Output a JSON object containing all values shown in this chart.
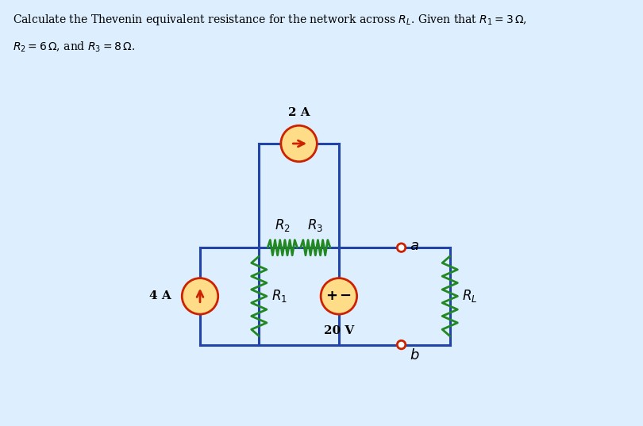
{
  "bg_color": "#ddeeff",
  "wire_color": "#2244aa",
  "resistor_color": "#228822",
  "source_fill": "#ffdd88",
  "source_border": "#cc2200",
  "label_2A": "2 A",
  "label_4A": "4 A",
  "label_20V": "20 V",
  "label_R1": "$R_1$",
  "label_R2": "$R_2$",
  "label_R3": "$R_3$",
  "label_RL": "$R_L$",
  "label_a": "$a$",
  "label_b": "$b$",
  "title_line1": "Calculate the Thevenin equivalent resistance for the network across $R_L$. Given that $R_1 = 3\\,\\Omega$,",
  "title_line2": "$R_2 = 6\\,\\Omega$, and $R_3 = 8\\,\\Omega$."
}
